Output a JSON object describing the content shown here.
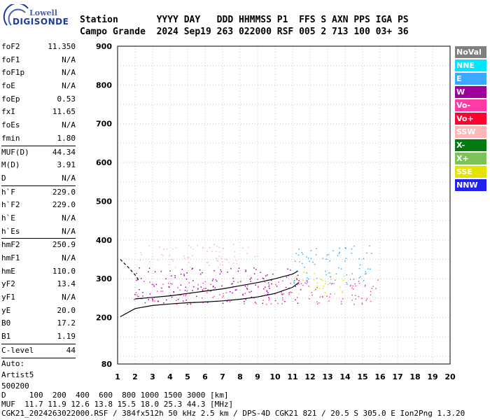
{
  "logo": {
    "top": "Lowell",
    "bottom": "DIGISONDE"
  },
  "header": {
    "line1": "Station       YYYY DAY   DDD HHMMSS P1  FFS S AXN PPS IGA PS",
    "line2": "Campo Grande  2024 Sep19 263 022000 RSF 005 2 713 100 03+ 36"
  },
  "params": [
    {
      "label": "foF2",
      "value": "11.350"
    },
    {
      "label": "foF1",
      "value": "N/A"
    },
    {
      "label": "foF1p",
      "value": "N/A"
    },
    {
      "label": "foE",
      "value": "N/A"
    },
    {
      "label": "foEp",
      "value": "0.53"
    },
    {
      "label": "fxI",
      "value": "11.65"
    },
    {
      "label": "foEs",
      "value": "N/A"
    },
    {
      "label": "fmin",
      "value": "1.80"
    },
    {
      "sep": true
    },
    {
      "label": "MUF(D)",
      "value": "44.34"
    },
    {
      "label": "M(D)",
      "value": "3.91"
    },
    {
      "label": "D",
      "value": "N/A"
    },
    {
      "sep": true
    },
    {
      "label": "h`F",
      "value": "229.0"
    },
    {
      "label": "h`F2",
      "value": "229.0"
    },
    {
      "label": "h`E",
      "value": "N/A"
    },
    {
      "label": "h`Es",
      "value": "N/A"
    },
    {
      "sep": true
    },
    {
      "label": "hmF2",
      "value": "250.9"
    },
    {
      "label": "hmF1",
      "value": "N/A"
    },
    {
      "label": "hmE",
      "value": "110.0"
    },
    {
      "label": "yF2",
      "value": "13.4"
    },
    {
      "label": "yF1",
      "value": "N/A"
    },
    {
      "label": "yE",
      "value": "20.0"
    },
    {
      "label": "B0",
      "value": "17.2"
    },
    {
      "label": "B1",
      "value": "1.19"
    },
    {
      "sep": true
    },
    {
      "label": "C-level",
      "value": "44"
    },
    {
      "sep": true
    },
    {
      "text": "Auto:"
    },
    {
      "text": "Artist5"
    },
    {
      "text": "500200"
    }
  ],
  "legend": [
    {
      "label": "NoVal",
      "bg": "#808080",
      "fg": "#ffffff"
    },
    {
      "label": "NNE",
      "bg": "#00e5ff",
      "fg": "#ffffff"
    },
    {
      "label": "E",
      "bg": "#3da8ff",
      "fg": "#ffffff"
    },
    {
      "label": "W",
      "bg": "#a0009a",
      "fg": "#ffffff"
    },
    {
      "label": "Vo-",
      "bg": "#ff3aa6",
      "fg": "#ffffff"
    },
    {
      "label": "Vo+",
      "bg": "#ff0030",
      "fg": "#ffffff"
    },
    {
      "label": "SSW",
      "bg": "#ffb6b6",
      "fg": "#ffffff"
    },
    {
      "label": "X-",
      "bg": "#007a10",
      "fg": "#ffffff"
    },
    {
      "label": "X+",
      "bg": "#7dc35a",
      "fg": "#ffffff"
    },
    {
      "label": "SSE",
      "bg": "#e4e400",
      "fg": "#ffffff"
    },
    {
      "label": "NNW",
      "bg": "#2222ee",
      "fg": "#ffffff"
    }
  ],
  "footer": {
    "line1": "D     100  200  400  600  800 1000 1500 3000 [km]",
    "line2": "MUF  11.7 11.9 12.6 13.8 15.5 18.0 25.3 44.3 [MHz]",
    "line3": "CGK21_2024263022000.RSF / 384fx512h 50 kHz 2.5 km / DPS-4D CGK21 821 / 20.5 S 305.0 E Ion2Png 1.3.20"
  },
  "chart_data": {
    "type": "scatter",
    "xlim": [
      1,
      20
    ],
    "ylim": [
      80,
      900
    ],
    "x_ticks": [
      1,
      2,
      3,
      4,
      5,
      6,
      7,
      8,
      9,
      10,
      11,
      12,
      13,
      14,
      15,
      16,
      17,
      18,
      19,
      20
    ],
    "y_ticks": [
      80,
      200,
      300,
      400,
      500,
      600,
      700,
      800,
      900
    ],
    "grid": true,
    "legend_position": "right",
    "traces": [
      {
        "name": "lower-profile",
        "color": "#000000",
        "x": [
          1.15,
          2,
          3,
          4,
          5,
          6,
          7,
          8,
          9,
          10,
          11,
          11.35
        ],
        "y": [
          202,
          223,
          231,
          235,
          238,
          240,
          243,
          247,
          253,
          262,
          278,
          290
        ]
      },
      {
        "name": "upper-dashed",
        "color": "#000000",
        "x": [
          1.15,
          1.6,
          2.0,
          2.2
        ],
        "y": [
          350,
          330,
          310,
          297
        ]
      },
      {
        "name": "virtual-height-trace",
        "color": "#000000",
        "x": [
          2,
          3,
          4,
          5,
          6,
          7,
          8,
          9,
          10,
          11,
          11.3
        ],
        "y": [
          248,
          252,
          256,
          262,
          268,
          274,
          282,
          290,
          300,
          312,
          320
        ]
      }
    ],
    "echo_regions": [
      {
        "color": "#ffb6b6",
        "x": [
          2.2,
          9
        ],
        "y": [
          330,
          390
        ]
      },
      {
        "color": "#a0009a",
        "x": [
          1.8,
          11.5
        ],
        "y": [
          235,
          330
        ]
      },
      {
        "color": "#ff3aa6",
        "x": [
          2,
          16
        ],
        "y": [
          235,
          300
        ]
      },
      {
        "color": "#3da8ff",
        "x": [
          11,
          15.5
        ],
        "y": [
          285,
          390
        ]
      },
      {
        "color": "#e4e400",
        "x": [
          11,
          14
        ],
        "y": [
          260,
          320
        ]
      }
    ]
  }
}
